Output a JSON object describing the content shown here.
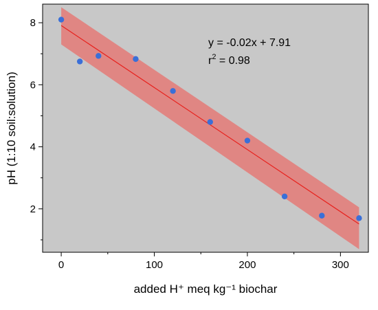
{
  "chart_data": {
    "type": "scatter",
    "xlabel": "added H⁺ meq kg⁻¹ biochar",
    "ylabel": "pH (1:10 soil:solution)",
    "xlim": [
      -20,
      330
    ],
    "ylim": [
      0.6,
      8.6
    ],
    "x_ticks": [
      0,
      100,
      200,
      300
    ],
    "y_ticks": [
      2,
      4,
      6,
      8
    ],
    "background_color": "#c8c8c8",
    "point_color": "#3a6fd8",
    "fit_line_color": "#e8201c",
    "confidence_band_color": "#e8706c",
    "series": [
      {
        "points": [
          {
            "x": 0,
            "y": 8.1
          },
          {
            "x": 20,
            "y": 6.75
          },
          {
            "x": 40,
            "y": 6.93
          },
          {
            "x": 80,
            "y": 6.83
          },
          {
            "x": 120,
            "y": 5.8
          },
          {
            "x": 160,
            "y": 4.8
          },
          {
            "x": 200,
            "y": 4.2
          },
          {
            "x": 240,
            "y": 2.4
          },
          {
            "x": 280,
            "y": 1.78
          },
          {
            "x": 320,
            "y": 1.7
          }
        ]
      }
    ],
    "fit": {
      "slope": -0.02,
      "intercept": 7.91,
      "x_range": [
        0,
        320
      ],
      "band_upper": [
        {
          "x": 0,
          "y": 8.5
        },
        {
          "x": 320,
          "y": 2.05
        }
      ],
      "band_lower": [
        {
          "x": 0,
          "y": 7.3
        },
        {
          "x": 320,
          "y": 0.7
        }
      ]
    },
    "annotations": {
      "equation": "y = -0.02x + 7.91",
      "r2_prefix": "r",
      "r2_sup": "2",
      "r2_suffix": " = 0.98"
    },
    "grid": false
  }
}
